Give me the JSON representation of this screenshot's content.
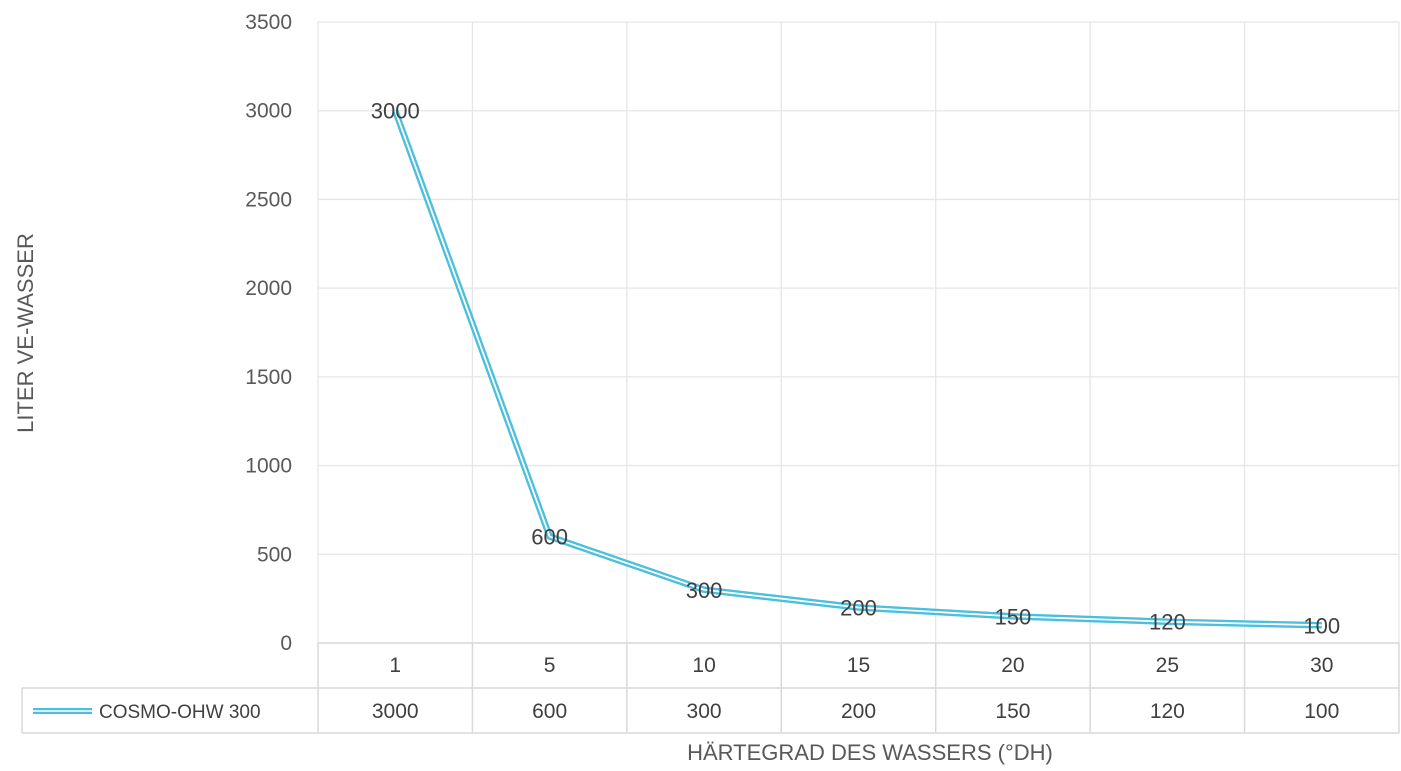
{
  "chart_data": {
    "type": "line",
    "title": "",
    "xlabel": "HÄRTEGRAD DES WASSERS (°DH)",
    "ylabel": "LITER VE-WASSER",
    "categories": [
      "1",
      "5",
      "10",
      "15",
      "20",
      "25",
      "30"
    ],
    "ylim": [
      0,
      3500
    ],
    "yticks": [
      0,
      500,
      1000,
      1500,
      2000,
      2500,
      3000,
      3500
    ],
    "grid": true,
    "data_labels": true,
    "data_table": true,
    "series": [
      {
        "name": "COSMO-OHW 300",
        "values": [
          3000,
          600,
          300,
          200,
          150,
          120,
          100
        ],
        "color": "#4bbfdc"
      }
    ]
  }
}
